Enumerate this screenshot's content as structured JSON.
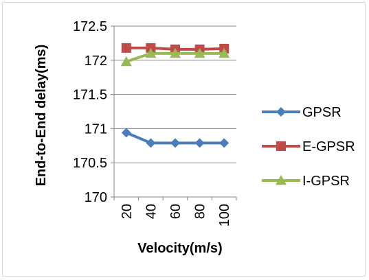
{
  "chart_data": {
    "type": "line",
    "title": "",
    "xlabel": "Velocity(m/s)",
    "ylabel": "End-to-End delay(ms)",
    "categories": [
      "20",
      "40",
      "60",
      "80",
      "100"
    ],
    "ylim": [
      170,
      172.5
    ],
    "yticks": [
      170,
      170.5,
      171,
      171.5,
      172,
      172.5
    ],
    "ytick_labels": [
      "170",
      "170.5",
      "171",
      "171.5",
      "172",
      "172.5"
    ],
    "grid": true,
    "legend_position": "right",
    "series": [
      {
        "name": "GPSR",
        "values": [
          170.94,
          170.79,
          170.79,
          170.79,
          170.79
        ],
        "color": "#4a7ebb",
        "marker": "diamond"
      },
      {
        "name": "E-GPSR",
        "values": [
          172.18,
          172.18,
          172.16,
          172.16,
          172.17
        ],
        "color": "#be4b48",
        "marker": "square"
      },
      {
        "name": "I-GPSR",
        "values": [
          171.98,
          172.1,
          172.1,
          172.1,
          172.1
        ],
        "color": "#98b954",
        "marker": "triangle"
      }
    ]
  }
}
